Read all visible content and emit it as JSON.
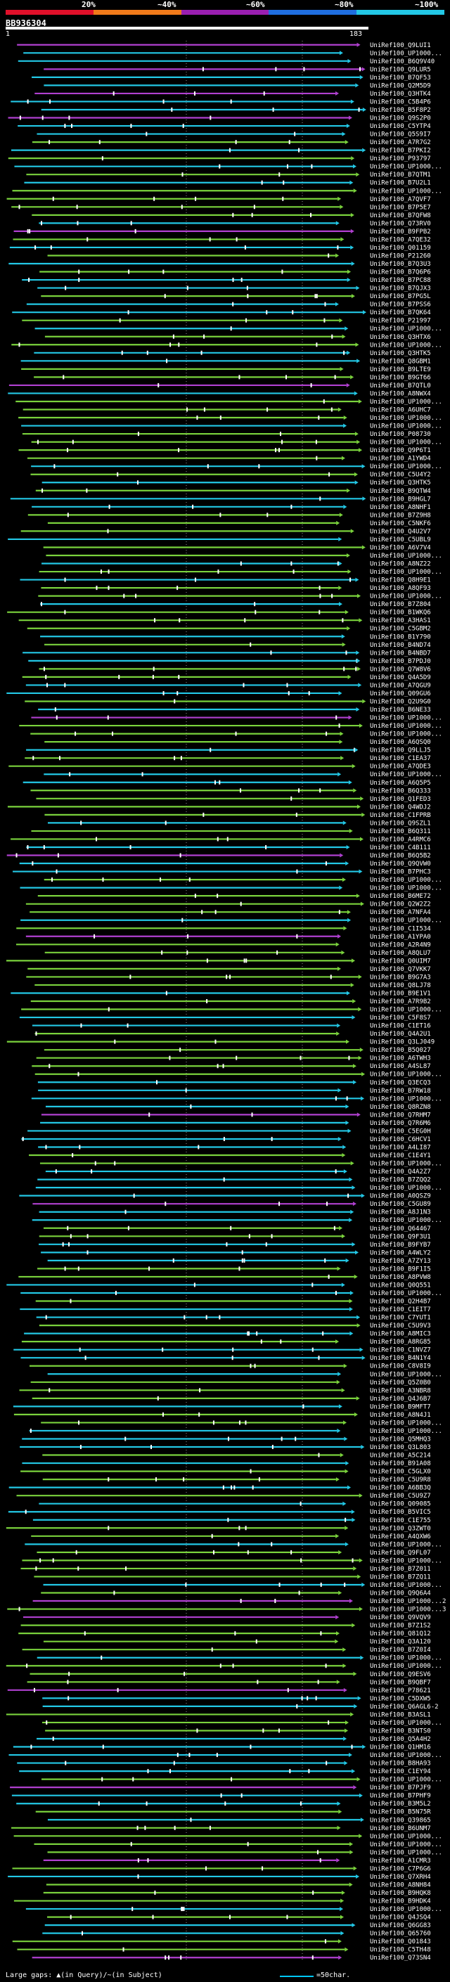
{
  "header": {
    "rank_labels": [
      "20%",
      "~40%",
      "~60%",
      "~80%",
      "~100%"
    ],
    "rank_colors": [
      "#e0102a",
      "#f07a1a",
      "#9a1fb0",
      "#1f6ee0",
      "#23c8e6"
    ],
    "query_id": "BB936304",
    "axis_start": "1",
    "axis_end": "183"
  },
  "chart_data": {
    "type": "alignment-overview",
    "title": "BB936304",
    "query_length": 183,
    "identity_colors": {
      "~40%": "#f07a1a",
      "~60%": "#b040d0",
      "~80%": "#7ad23c",
      "~100%": "#23c8e6"
    },
    "hits": [
      "UniRef100_Q9LUI1",
      "UniRef100_UP1000...",
      "UniRef100_B6Q9V40",
      "UniRef100_Q9LUR5",
      "UniRef100_B7QF53",
      "UniRef100_Q2M5D9",
      "UniRef100_Q3HTK4",
      "UniRef100_C5B4P6",
      "UniRef100_B5F8P2",
      "UniRef100_Q9S2P0",
      "UniRef100_C5YTP4",
      "UniRef100_Q5S9I7",
      "UniRef100_A7R7G2",
      "UniRef100_B7PKI2",
      "UniRef100_P93797",
      "UniRef100_UP1000...",
      "UniRef100_B7QTM1",
      "UniRef100_B7U2L1",
      "UniRef100_UP1000...",
      "UniRef100_A7QVF7",
      "UniRef100_B7P5E7",
      "UniRef100_B7QFW8",
      "UniRef100_Q73RV0",
      "UniRef100_B9FPB2",
      "UniRef100_A7QE32",
      "UniRef100_Q01159",
      "UniRef100_P21260",
      "UniRef100_B7Q3U3",
      "UniRef100_B7Q6P6",
      "UniRef100_B7PC88",
      "UniRef100_B7QJX3",
      "UniRef100_B7PG5L",
      "UniRef100_B7PSS6",
      "UniRef100_B7QK64",
      "UniRef100_P21997",
      "UniRef100_UP1000...",
      "UniRef100_Q3HTX6",
      "UniRef100_UP1000...",
      "UniRef100_Q3HTK5",
      "UniRef100_Q8GBM1",
      "UniRef100_B9LTE9",
      "UniRef100_B9GT66",
      "UniRef100_B7QTL0",
      "UniRef100_A8NWX4",
      "UniRef100_UP1000...",
      "UniRef100_A6UHC7",
      "UniRef100_UP1000...",
      "UniRef100_UP1000...",
      "UniRef100_P08730",
      "UniRef100_UP1000...",
      "UniRef100_Q9P6T1",
      "UniRef100_A1YWD4",
      "UniRef100_UP1000...",
      "UniRef100_C5U4Y2",
      "UniRef100_Q3HTK5",
      "UniRef100_B9QTW4",
      "UniRef100_B9HGL7",
      "UniRef100_A8NHF1",
      "UniRef100_B7Z9H8",
      "UniRef100_C5NKF6",
      "UniRef100_Q4U2V7",
      "UniRef100_C5UBL9",
      "UniRef100_A6V7V4",
      "UniRef100_UP1000...",
      "UniRef100_A8NZ22",
      "UniRef100_UP1000...",
      "UniRef100_Q8H9E1",
      "UniRef100_A8QF93",
      "UniRef100_UP1000...",
      "UniRef100_B7Z804",
      "UniRef100_B1WKQ6",
      "UniRef100_A3HAS1",
      "UniRef100_C5GBM2",
      "UniRef100_B1Y790",
      "UniRef100_B4ND74",
      "UniRef100_B4NBD7",
      "UniRef100_B7PDJ0",
      "UniRef100_Q7W8V6",
      "UniRef100_Q4A5D9",
      "UniRef100_A7QGU9",
      "UniRef100_Q09GU6",
      "UniRef100_Q2U9G0",
      "UniRef100_B6NE33",
      "UniRef100_UP1000...",
      "UniRef100_UP1000...",
      "UniRef100_UP1000...",
      "UniRef100_A6QSQ0",
      "UniRef100_Q9LLJ5",
      "UniRef100_C1EA37",
      "UniRef100_A7QDE3",
      "UniRef100_UP1000...",
      "UniRef100_A6Q5P5",
      "UniRef100_B6Q333",
      "UniRef100_Q1FED3",
      "UniRef100_Q4WDJ2",
      "UniRef100_C1FPRB",
      "UniRef100_Q9SZL1",
      "UniRef100_B6Q311",
      "UniRef100_A4RMC6",
      "UniRef100_C4B111",
      "UniRef100_B6Q5B2",
      "UniRef100_Q9QVW0",
      "UniRef100_B7PHC3",
      "UniRef100_UP1000...",
      "UniRef100_UP1000...",
      "UniRef100_B6ME72",
      "UniRef100_Q2W2Z2",
      "UniRef100_A7NFA4",
      "UniRef100_UP1000...",
      "UniRef100_C1I534",
      "UniRef100_A1YPA0",
      "UniRef100_A2R4N9",
      "UniRef100_A8QLU7",
      "UniRef100_Q0UIM7",
      "UniRef100_Q7VKK7",
      "UniRef100_B9G7A3",
      "UniRef100_Q8LJ78",
      "UniRef100_B9E1V1",
      "UniRef100_A7R9B2",
      "UniRef100_UP1000...",
      "UniRef100_C5F8S7",
      "UniRef100_C1ET16",
      "UniRef100_Q4A2U1",
      "UniRef100_Q3LJ049",
      "UniRef100_B5Q027",
      "UniRef100_A6TWH3",
      "UniRef100_A4SL87",
      "UniRef100_UP1000...",
      "UniRef100_Q3ECQ3",
      "UniRef100_B7RW18",
      "UniRef100_UP1000...",
      "UniRef100_Q8RZN8",
      "UniRef100_Q7RHM7",
      "UniRef100_Q7R6M6",
      "UniRef100_C5EG0H",
      "UniRef100_C6HCV1",
      "UniRef100_A4LI87",
      "UniRef100_C1E4Y1",
      "UniRef100_UP1000...",
      "UniRef100_Q4A2Z7",
      "UniRef100_B7ZQQ2",
      "UniRef100_UP1000...",
      "UniRef100_A0QSZ9",
      "UniRef100_C5GU89",
      "UniRef100_A8J1N3",
      "UniRef100_UP1000...",
      "UniRef100_Q64467",
      "UniRef100_Q9F3U1",
      "UniRef100_B9FYB7",
      "UniRef100_A4WLY2",
      "UniRef100_A7ZY13",
      "UniRef100_B9F1I5",
      "UniRef100_A8PVW8",
      "UniRef100_Q0Q551",
      "UniRef100_UP1000...",
      "UniRef100_Q2H4B7",
      "UniRef100_C1EIT7",
      "UniRef100_C7YUT1",
      "UniRef100_C5U9V3",
      "UniRef100_A8MIC3",
      "UniRef100_A8RG85",
      "UniRef100_C1NVZ7",
      "UniRef100_B4N1Y4",
      "UniRef100_C8V8I9",
      "UniRef100_UP1000...",
      "UniRef100_Q5Z0B0",
      "UniRef100_A3NBR8",
      "UniRef100_Q4J6B7",
      "UniRef100_B9MFT7",
      "UniRef100_A8N4J1",
      "UniRef100_UP1000...",
      "UniRef100_UP1000...",
      "UniRef100_Q5MHQ3",
      "UniRef100_Q3L803",
      "UniRef100_A5C214",
      "UniRef100_B91A08",
      "UniRef100_C5GLX0",
      "UniRef100_C5U9R8",
      "UniRef100_A6BB3Q",
      "UniRef100_C5U9Z7",
      "UniRef100_Q09085",
      "UniRef100_B5VIC5",
      "UniRef100_C1E755",
      "UniRef100_Q3ZWT0",
      "UniRef100_A4QXW6",
      "UniRef100_UP1000...",
      "UniRef100_Q9FL07",
      "UniRef100_UP1000...",
      "UniRef100_B7Z011",
      "UniRef100_B7ZQ11",
      "UniRef100_UP1000...",
      "UniRef100_Q9Q6A4",
      "UniRef100_UP1000...2",
      "UniRef100_UP1000...3",
      "UniRef100_Q9VQV9",
      "UniRef100_B7Z1S2",
      "UniRef100_Q81Q12",
      "UniRef100_Q3A120",
      "UniRef100_B7Z0I4",
      "UniRef100_UP1000...",
      "UniRef100_UP1000...",
      "UniRef100_Q9ESV6",
      "UniRef100_B9QBF7",
      "UniRef100_P78621",
      "UniRef100_C5DXW5",
      "UniRef100_Q6AGL6-2",
      "UniRef100_B3ASL1",
      "UniRef100_UP1000...",
      "UniRef100_B3NTS0",
      "UniRef100_Q5A4H2",
      "UniRef100_Q1HM16",
      "UniRef100_UP1000...",
      "UniRef100_B8HA93",
      "UniRef100_C1EY94",
      "UniRef100_UP1000...",
      "UniRef100_B7PJF9",
      "UniRef100_B7PHF9",
      "UniRef100_B3M5L2",
      "UniRef100_B5N75R",
      "UniRef100_Q39865",
      "UniRef100_B6UNM7",
      "UniRef100_UP1000...",
      "UniRef100_UP1000...",
      "UniRef100_UP1000...",
      "UniRef100_A1CMR3",
      "UniRef100_C7P6G6",
      "UniRef100_Q7XRH4",
      "UniRef100_A8NH84",
      "UniRef100_B9HQK8",
      "UniRef100_B9HDK4",
      "UniRef100_UP1000...",
      "UniRef100_Q4JSQ4",
      "UniRef100_Q6GG83",
      "UniRef100_Q65760",
      "UniRef100_Q01843",
      "UniRef100_C5TH48",
      "UniRef100_Q73SN4"
    ]
  },
  "footer": {
    "gaps_label": "Large gaps: ▲(in Query)/~(in Subject)",
    "scale_label": "=50char."
  }
}
